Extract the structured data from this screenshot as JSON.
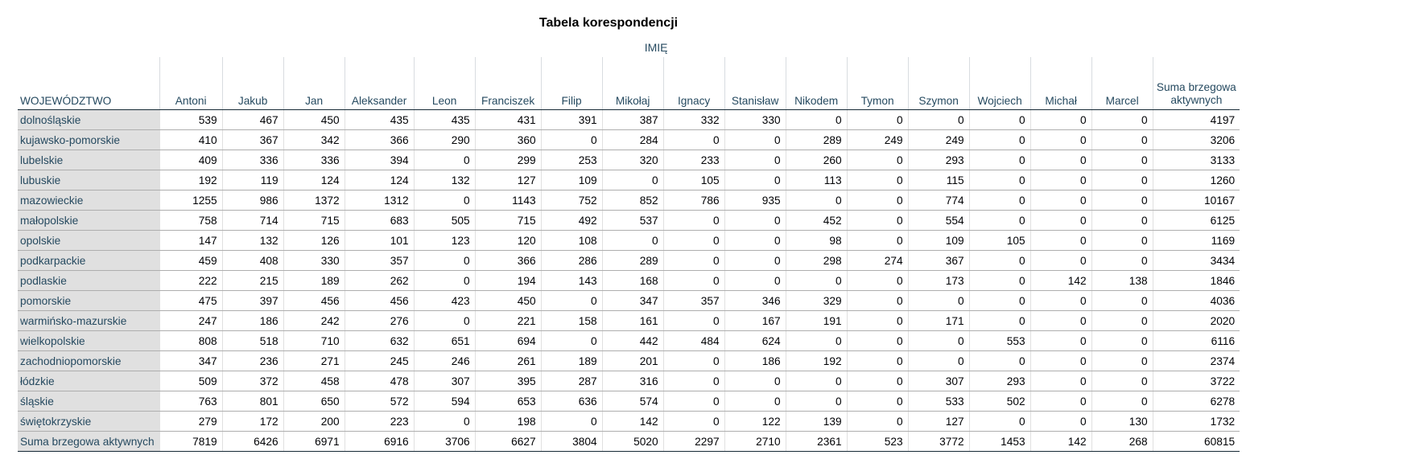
{
  "title": "Tabela korespondencji",
  "column_group": "IMIĘ",
  "row_header": "WOJEWÓDZTWO",
  "columns": [
    "Antoni",
    "Jakub",
    "Jan",
    "Aleksander",
    "Leon",
    "Franciszek",
    "Filip",
    "Mikołaj",
    "Ignacy",
    "Stanisław",
    "Nikodem",
    "Tymon",
    "Szymon",
    "Wojciech",
    "Michał",
    "Marcel",
    "Suma brzegowa aktywnych"
  ],
  "rows": [
    {
      "label": "dolnośląskie",
      "values": [
        539,
        467,
        450,
        435,
        435,
        431,
        391,
        387,
        332,
        330,
        0,
        0,
        0,
        0,
        0,
        0,
        4197
      ]
    },
    {
      "label": "kujawsko-pomorskie",
      "values": [
        410,
        367,
        342,
        366,
        290,
        360,
        0,
        284,
        0,
        0,
        289,
        249,
        249,
        0,
        0,
        0,
        3206
      ]
    },
    {
      "label": "lubelskie",
      "values": [
        409,
        336,
        336,
        394,
        0,
        299,
        253,
        320,
        233,
        0,
        260,
        0,
        293,
        0,
        0,
        0,
        3133
      ]
    },
    {
      "label": "lubuskie",
      "values": [
        192,
        119,
        124,
        124,
        132,
        127,
        109,
        0,
        105,
        0,
        113,
        0,
        115,
        0,
        0,
        0,
        1260
      ]
    },
    {
      "label": "mazowieckie",
      "values": [
        1255,
        986,
        1372,
        1312,
        0,
        1143,
        752,
        852,
        786,
        935,
        0,
        0,
        774,
        0,
        0,
        0,
        10167
      ]
    },
    {
      "label": "małopolskie",
      "values": [
        758,
        714,
        715,
        683,
        505,
        715,
        492,
        537,
        0,
        0,
        452,
        0,
        554,
        0,
        0,
        0,
        6125
      ]
    },
    {
      "label": "opolskie",
      "values": [
        147,
        132,
        126,
        101,
        123,
        120,
        108,
        0,
        0,
        0,
        98,
        0,
        109,
        105,
        0,
        0,
        1169
      ]
    },
    {
      "label": "podkarpackie",
      "values": [
        459,
        408,
        330,
        357,
        0,
        366,
        286,
        289,
        0,
        0,
        298,
        274,
        367,
        0,
        0,
        0,
        3434
      ]
    },
    {
      "label": "podlaskie",
      "values": [
        222,
        215,
        189,
        262,
        0,
        194,
        143,
        168,
        0,
        0,
        0,
        0,
        173,
        0,
        142,
        138,
        1846
      ]
    },
    {
      "label": "pomorskie",
      "values": [
        475,
        397,
        456,
        456,
        423,
        450,
        0,
        347,
        357,
        346,
        329,
        0,
        0,
        0,
        0,
        0,
        4036
      ]
    },
    {
      "label": "warmińsko-mazurskie",
      "values": [
        247,
        186,
        242,
        276,
        0,
        221,
        158,
        161,
        0,
        167,
        191,
        0,
        171,
        0,
        0,
        0,
        2020
      ]
    },
    {
      "label": "wielkopolskie",
      "values": [
        808,
        518,
        710,
        632,
        651,
        694,
        0,
        442,
        484,
        624,
        0,
        0,
        0,
        553,
        0,
        0,
        6116
      ]
    },
    {
      "label": "zachodniopomorskie",
      "values": [
        347,
        236,
        271,
        245,
        246,
        261,
        189,
        201,
        0,
        186,
        192,
        0,
        0,
        0,
        0,
        0,
        2374
      ]
    },
    {
      "label": "łódzkie",
      "values": [
        509,
        372,
        458,
        478,
        307,
        395,
        287,
        316,
        0,
        0,
        0,
        0,
        307,
        293,
        0,
        0,
        3722
      ]
    },
    {
      "label": "śląskie",
      "values": [
        763,
        801,
        650,
        572,
        594,
        653,
        636,
        574,
        0,
        0,
        0,
        0,
        533,
        502,
        0,
        0,
        6278
      ]
    },
    {
      "label": "świętokrzyskie",
      "values": [
        279,
        172,
        200,
        223,
        0,
        198,
        0,
        142,
        0,
        122,
        139,
        0,
        127,
        0,
        0,
        130,
        1732
      ]
    },
    {
      "label": "Suma brzegowa aktywnych",
      "values": [
        7819,
        6426,
        6971,
        6916,
        3706,
        6627,
        3804,
        5020,
        2297,
        2710,
        2361,
        523,
        3772,
        1453,
        142,
        268,
        60815
      ]
    }
  ]
}
